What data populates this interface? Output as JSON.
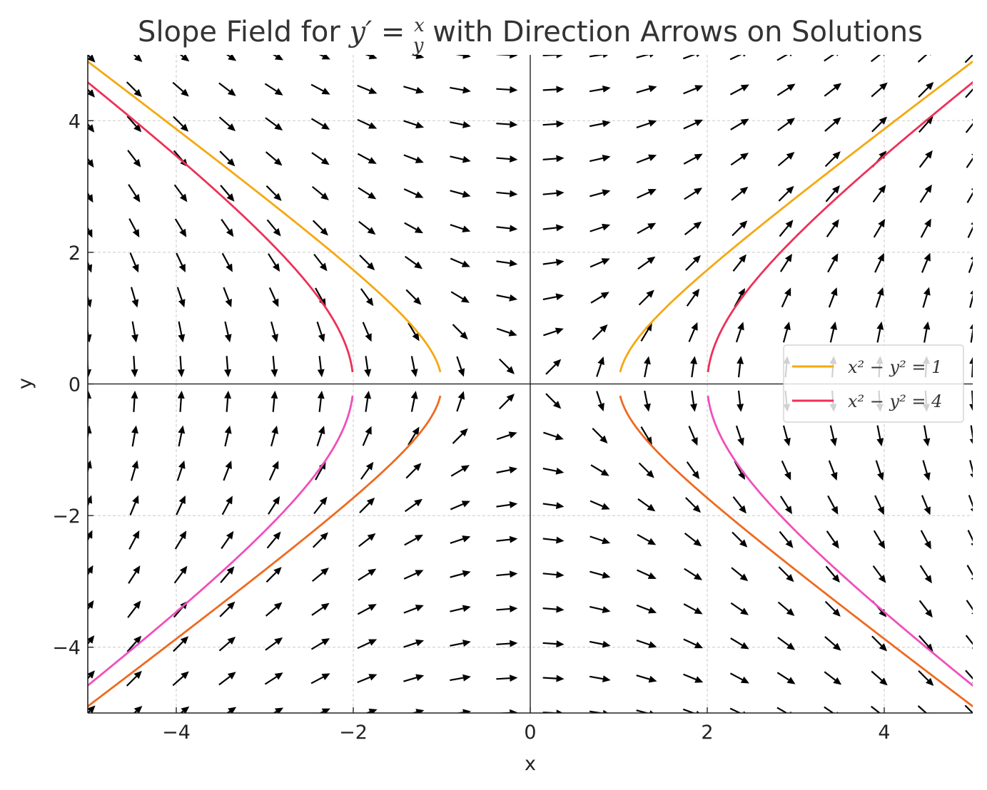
{
  "chart_data": {
    "type": "line",
    "title_parts": {
      "prefix": "Slope Field for ",
      "eq_lhs": "y′ = ",
      "frac_num": "x",
      "frac_den": "y",
      "suffix": " with Direction Arrows on Solutions"
    },
    "xlabel": "x",
    "ylabel": "y",
    "xlim": [
      -5,
      5
    ],
    "ylim": [
      -5,
      5
    ],
    "xticks": [
      -4,
      -2,
      0,
      2,
      4
    ],
    "yticks": [
      -4,
      -2,
      0,
      2,
      4
    ],
    "xtick_labels": [
      "−4",
      "−2",
      "0",
      "2",
      "4"
    ],
    "ytick_labels": [
      "−4",
      "−2",
      "0",
      "2",
      "4"
    ],
    "grid": true,
    "legend_position": "center-right",
    "slope_field": {
      "equation": "dy/dx = x/y",
      "x_start": -5,
      "x_end": 5,
      "y_start": -5,
      "y_end": 5,
      "count": 20,
      "color": "#000000"
    },
    "series": [
      {
        "name": "x² − y² = 1",
        "legend_label": "x² − y² = 1",
        "c": 1,
        "branch": "upper",
        "color": "#f5a80f"
      },
      {
        "c": 1,
        "branch": "lower",
        "color": "#ee6a1f"
      },
      {
        "name": "x² − y² = 4",
        "legend_label": "x² − y² = 4",
        "c": 4,
        "branch": "upper",
        "color": "#ee3056"
      },
      {
        "c": 4,
        "branch": "lower",
        "color": "#f04fbb"
      }
    ]
  }
}
